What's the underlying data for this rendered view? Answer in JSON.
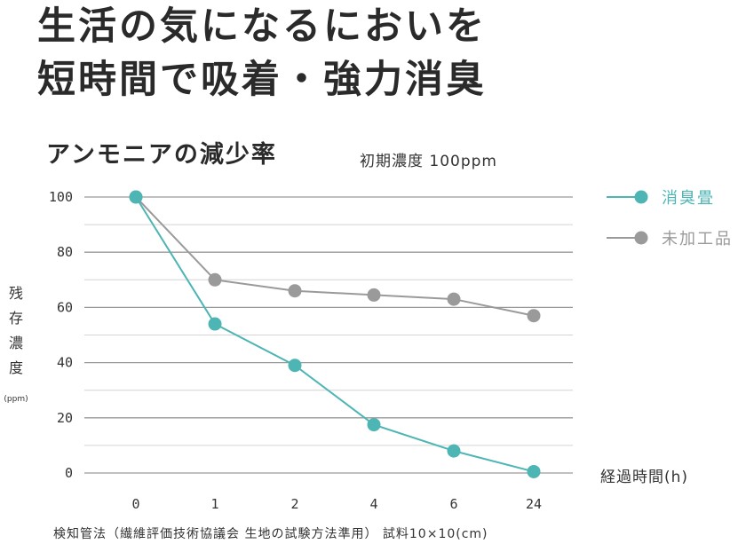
{
  "headline": {
    "line1": "生活の気になるにおいを",
    "line2": "短時間で吸着・強力消臭"
  },
  "chart_data": {
    "type": "line",
    "title": "アンモニアの減少率",
    "subtitle": "初期濃度 100ppm",
    "categories": [
      "0",
      "1",
      "2",
      "4",
      "6",
      "24"
    ],
    "series": [
      {
        "name": "消臭畳",
        "color": "#4db5b4",
        "values": [
          100,
          54,
          39,
          17.5,
          8,
          0.5
        ]
      },
      {
        "name": "未加工品",
        "color": "#9a9a9a",
        "values": [
          100,
          70,
          66,
          64.5,
          63,
          57
        ]
      }
    ],
    "ylim": [
      0,
      100
    ],
    "yticks": [
      "100",
      "80",
      "60",
      "40",
      "20",
      "0"
    ],
    "ylabel_chars": [
      "残",
      "存",
      "濃",
      "度"
    ],
    "ylabel_unit": "(ppm)",
    "xlabel": "経過時間(h)",
    "grid": true,
    "legend_position": "right",
    "footnote": "検知管法（繊維評価技術協議会 生地の試験方法準用） 試料10×10(cm)"
  }
}
